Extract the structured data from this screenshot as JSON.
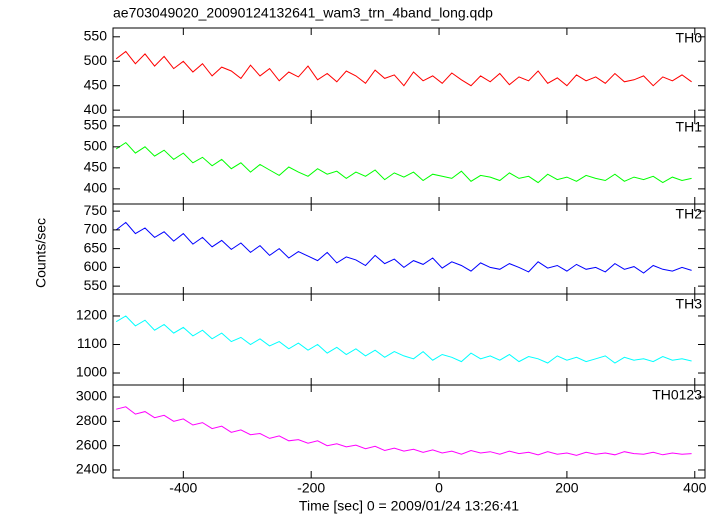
{
  "chart_data": {
    "type": "line",
    "title": "ae703049020_20090124132641_wam3_trn_4band_long.qdp",
    "x_label": "Time [sec] 0 = 2009/01/24 13:26:41",
    "y_label": "Counts/sec",
    "xlim": [
      -510,
      416
    ],
    "xticks": [
      -400,
      -200,
      0,
      200,
      400
    ],
    "x": [
      -505,
      -490,
      -475,
      -460,
      -445,
      -430,
      -415,
      -400,
      -385,
      -370,
      -355,
      -340,
      -325,
      -310,
      -295,
      -280,
      -265,
      -250,
      -235,
      -220,
      -205,
      -190,
      -175,
      -160,
      -145,
      -130,
      -115,
      -100,
      -85,
      -70,
      -55,
      -40,
      -25,
      -10,
      5,
      20,
      35,
      50,
      65,
      80,
      95,
      110,
      125,
      140,
      155,
      170,
      185,
      200,
      215,
      230,
      245,
      260,
      275,
      290,
      305,
      320,
      335,
      350,
      365,
      380,
      395
    ],
    "series": [
      {
        "name": "TH0",
        "color": "#ff0000",
        "ylim": [
          386,
          568
        ],
        "yticks": [
          400,
          450,
          500,
          550
        ],
        "values": [
          505,
          520,
          495,
          515,
          490,
          510,
          485,
          500,
          478,
          495,
          470,
          488,
          480,
          465,
          492,
          470,
          485,
          460,
          478,
          468,
          490,
          462,
          475,
          458,
          480,
          470,
          455,
          482,
          465,
          472,
          450,
          478,
          460,
          470,
          455,
          476,
          462,
          450,
          470,
          458,
          475,
          452,
          468,
          460,
          480,
          455,
          466,
          450,
          472,
          460,
          468,
          455,
          475,
          458,
          462,
          470,
          450,
          468,
          460,
          472,
          458
        ]
      },
      {
        "name": "TH1",
        "color": "#00ff00",
        "ylim": [
          364,
          571
        ],
        "yticks": [
          400,
          450,
          500,
          550
        ],
        "values": [
          495,
          510,
          485,
          500,
          478,
          492,
          470,
          485,
          462,
          475,
          455,
          470,
          448,
          462,
          440,
          458,
          445,
          432,
          452,
          440,
          430,
          448,
          435,
          442,
          425,
          440,
          430,
          445,
          422,
          438,
          428,
          440,
          420,
          435,
          430,
          425,
          442,
          418,
          432,
          428,
          420,
          438,
          425,
          430,
          415,
          435,
          422,
          428,
          418,
          432,
          425,
          420,
          435,
          418,
          428,
          422,
          430,
          415,
          428,
          420,
          425
        ]
      },
      {
        "name": "TH2",
        "color": "#0000ff",
        "ylim": [
          529,
          769
        ],
        "yticks": [
          550,
          600,
          650,
          700,
          750
        ],
        "values": [
          700,
          720,
          690,
          705,
          680,
          695,
          670,
          690,
          662,
          680,
          655,
          672,
          648,
          665,
          640,
          658,
          632,
          650,
          625,
          642,
          630,
          618,
          640,
          612,
          628,
          620,
          605,
          632,
          610,
          622,
          600,
          618,
          608,
          625,
          598,
          615,
          605,
          590,
          612,
          600,
          595,
          610,
          600,
          588,
          615,
          598,
          605,
          590,
          608,
          595,
          600,
          588,
          610,
          595,
          602,
          585,
          605,
          595,
          590,
          600,
          592
        ]
      },
      {
        "name": "TH3",
        "color": "#00ffff",
        "ylim": [
          958,
          1277
        ],
        "yticks": [
          1000,
          1100,
          1200
        ],
        "values": [
          1180,
          1200,
          1165,
          1185,
          1150,
          1170,
          1140,
          1160,
          1130,
          1150,
          1120,
          1140,
          1110,
          1125,
          1100,
          1120,
          1095,
          1110,
          1085,
          1105,
          1080,
          1100,
          1070,
          1090,
          1065,
          1085,
          1060,
          1080,
          1055,
          1075,
          1060,
          1050,
          1075,
          1045,
          1065,
          1055,
          1040,
          1070,
          1050,
          1060,
          1045,
          1065,
          1040,
          1058,
          1050,
          1035,
          1060,
          1045,
          1055,
          1040,
          1050,
          1060,
          1035,
          1055,
          1045,
          1050,
          1040,
          1058,
          1045,
          1050,
          1042
        ]
      },
      {
        "name": "TH0123",
        "color": "#ff00ff",
        "ylim": [
          2334,
          3099
        ],
        "yticks": [
          2400,
          2600,
          2800,
          3000
        ],
        "values": [
          2900,
          2920,
          2860,
          2880,
          2830,
          2850,
          2800,
          2820,
          2770,
          2790,
          2740,
          2760,
          2710,
          2730,
          2690,
          2700,
          2660,
          2680,
          2640,
          2650,
          2620,
          2640,
          2600,
          2615,
          2590,
          2605,
          2575,
          2595,
          2560,
          2580,
          2555,
          2570,
          2545,
          2565,
          2540,
          2555,
          2530,
          2560,
          2540,
          2550,
          2530,
          2555,
          2535,
          2545,
          2525,
          2550,
          2530,
          2540,
          2520,
          2545,
          2530,
          2540,
          2525,
          2550,
          2535,
          2530,
          2545,
          2525,
          2540,
          2530,
          2535
        ]
      }
    ]
  }
}
